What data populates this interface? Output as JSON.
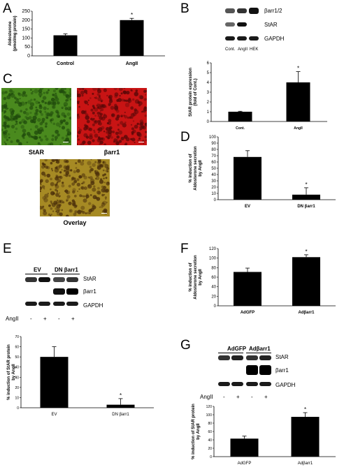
{
  "panels": {
    "A": {
      "letter": "A"
    },
    "B": {
      "letter": "B",
      "blot_rows": [
        "βarr1/2",
        "StAR",
        "GAPDH"
      ],
      "lanes": [
        "Cont.",
        "AngII",
        "HEK"
      ]
    },
    "C": {
      "letter": "C",
      "image_labels": [
        "StAR",
        "βarr1",
        "Overlay"
      ],
      "colors": {
        "green": "#4a8a1e",
        "red": "#c81414",
        "overlay": "#a68a24"
      }
    },
    "D": {
      "letter": "D"
    },
    "E": {
      "letter": "E",
      "group_labels": [
        "EV",
        "DN βarr1"
      ],
      "blot_rows": [
        "StAR",
        "βarr1",
        "GAPDH"
      ],
      "treatment_label": "AngII",
      "treatment_signs": [
        "-",
        "+",
        "-",
        "+"
      ]
    },
    "F": {
      "letter": "F"
    },
    "G": {
      "letter": "G",
      "group_labels": [
        "AdGFP",
        "Adβarr1"
      ],
      "blot_rows": [
        "StAR",
        "βarr1",
        "GAPDH"
      ],
      "treatment_label": "AngII",
      "treatment_signs": [
        "-",
        "+",
        "-",
        "+"
      ]
    }
  },
  "chart_data": [
    {
      "id": "A",
      "type": "bar",
      "categories": [
        "Control",
        "AngII"
      ],
      "values": [
        115,
        200
      ],
      "errors": [
        8,
        10
      ],
      "significance": [
        "",
        "*"
      ],
      "ylabel": "Aldosterone\n(pmol/mg protein)",
      "ylim": [
        0,
        250
      ],
      "yticks": [
        "0",
        "50",
        "100",
        "150",
        "200",
        "250"
      ]
    },
    {
      "id": "B",
      "type": "bar",
      "categories": [
        "Cont.",
        "AngII"
      ],
      "values": [
        1,
        4
      ],
      "errors": [
        0.05,
        1.1
      ],
      "significance": [
        "",
        "*"
      ],
      "ylabel": "StAR protein expression\n(fold of Cont.)",
      "ylim": [
        0,
        6
      ],
      "yticks": [
        "0",
        "1",
        "2",
        "3",
        "4",
        "5",
        "6"
      ]
    },
    {
      "id": "D",
      "type": "bar",
      "categories": [
        "EV",
        "DN βarr1"
      ],
      "values": [
        68,
        8
      ],
      "errors": [
        10,
        11
      ],
      "significance": [
        "",
        "*"
      ],
      "ylabel": "% induction of\nAldosterone secretion\nby AngII",
      "ylim": [
        0,
        100
      ],
      "yticks": [
        "0",
        "10",
        "20",
        "30",
        "40",
        "50",
        "60",
        "70",
        "80",
        "90",
        "100"
      ]
    },
    {
      "id": "E",
      "type": "bar",
      "categories": [
        "EV",
        "DN βarr1"
      ],
      "values": [
        50,
        3
      ],
      "errors": [
        10,
        6
      ],
      "significance": [
        "",
        "*"
      ],
      "ylabel": "% induction of StAR protein\nby AngII",
      "ylim": [
        0,
        70
      ],
      "yticks": [
        "0",
        "10",
        "20",
        "30",
        "40",
        "50",
        "60",
        "70"
      ]
    },
    {
      "id": "F",
      "type": "bar",
      "categories": [
        "AdGFP",
        "Adβarr1"
      ],
      "values": [
        71,
        102
      ],
      "errors": [
        8,
        5
      ],
      "significance": [
        "",
        "*"
      ],
      "ylabel": "% induction of\nAldosterone secretion\nby AngII",
      "ylim": [
        0,
        120
      ],
      "yticks": [
        "0",
        "20",
        "40",
        "60",
        "80",
        "100",
        "120"
      ]
    },
    {
      "id": "G",
      "type": "bar",
      "categories": [
        "AdGFP",
        "Adβarr1"
      ],
      "values": [
        43,
        95
      ],
      "errors": [
        6,
        10
      ],
      "significance": [
        "",
        "*"
      ],
      "ylabel": "% induction of StAR protein\nby AngII",
      "ylim": [
        0,
        120
      ],
      "yticks": [
        "0",
        "20",
        "40",
        "60",
        "80",
        "100",
        "120"
      ]
    }
  ]
}
